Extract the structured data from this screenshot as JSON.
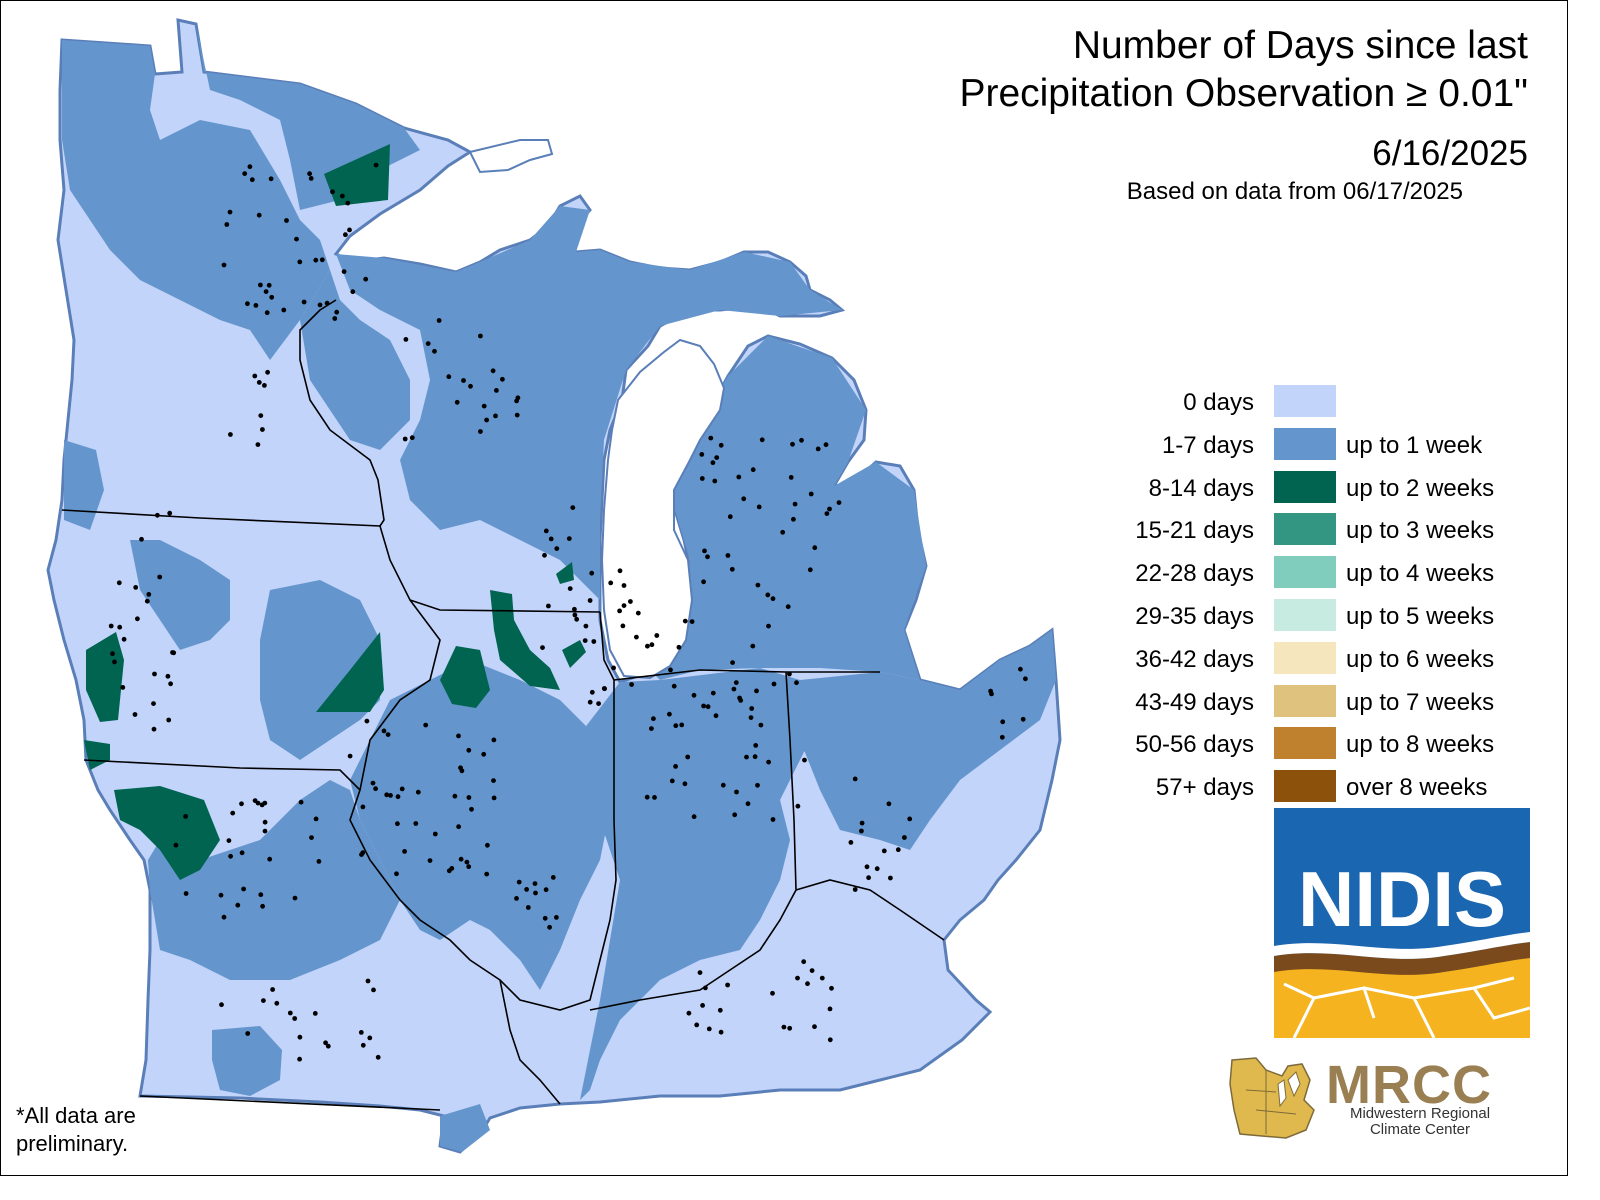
{
  "title_line1": "Number of Days since last",
  "title_line2": "Precipitation Observation ≥ 0.01\"",
  "date": "6/16/2025",
  "based_on": "Based on data from 06/17/2025",
  "legend": [
    {
      "days": "0 days",
      "desc": "",
      "color": "#c3d4fb"
    },
    {
      "days": "1-7 days",
      "desc": "up to 1 week",
      "color": "#6496cd"
    },
    {
      "days": "8-14 days",
      "desc": "up to 2 weeks",
      "color": "#006450"
    },
    {
      "days": "15-21 days",
      "desc": "up to 3 weeks",
      "color": "#329682"
    },
    {
      "days": "22-28 days",
      "desc": "up to 4 weeks",
      "color": "#80cdbd"
    },
    {
      "days": "29-35 days",
      "desc": "up to 5 weeks",
      "color": "#c7ebe1"
    },
    {
      "days": "36-42 days",
      "desc": "up to 6 weeks",
      "color": "#f5e6be"
    },
    {
      "days": "43-49 days",
      "desc": "up to 7 weeks",
      "color": "#dfc27d"
    },
    {
      "days": "50-56 days",
      "desc": "up to 8 weeks",
      "color": "#bf812d"
    },
    {
      "days": "57+ days",
      "desc": "over 8 weeks",
      "color": "#8c510a"
    }
  ],
  "nidis_label": "NIDIS",
  "mrcc": {
    "acronym": "MRCC",
    "line1": "Midwestern Regional",
    "line2": "Climate Center"
  },
  "footnote_line1": "*All data are",
  "footnote_line2": "preliminary.",
  "colors": {
    "zero_days": "#c3d4fb",
    "one_week": "#6496cd",
    "two_weeks": "#006450",
    "lake": "#ffffff",
    "border": "#000000"
  }
}
